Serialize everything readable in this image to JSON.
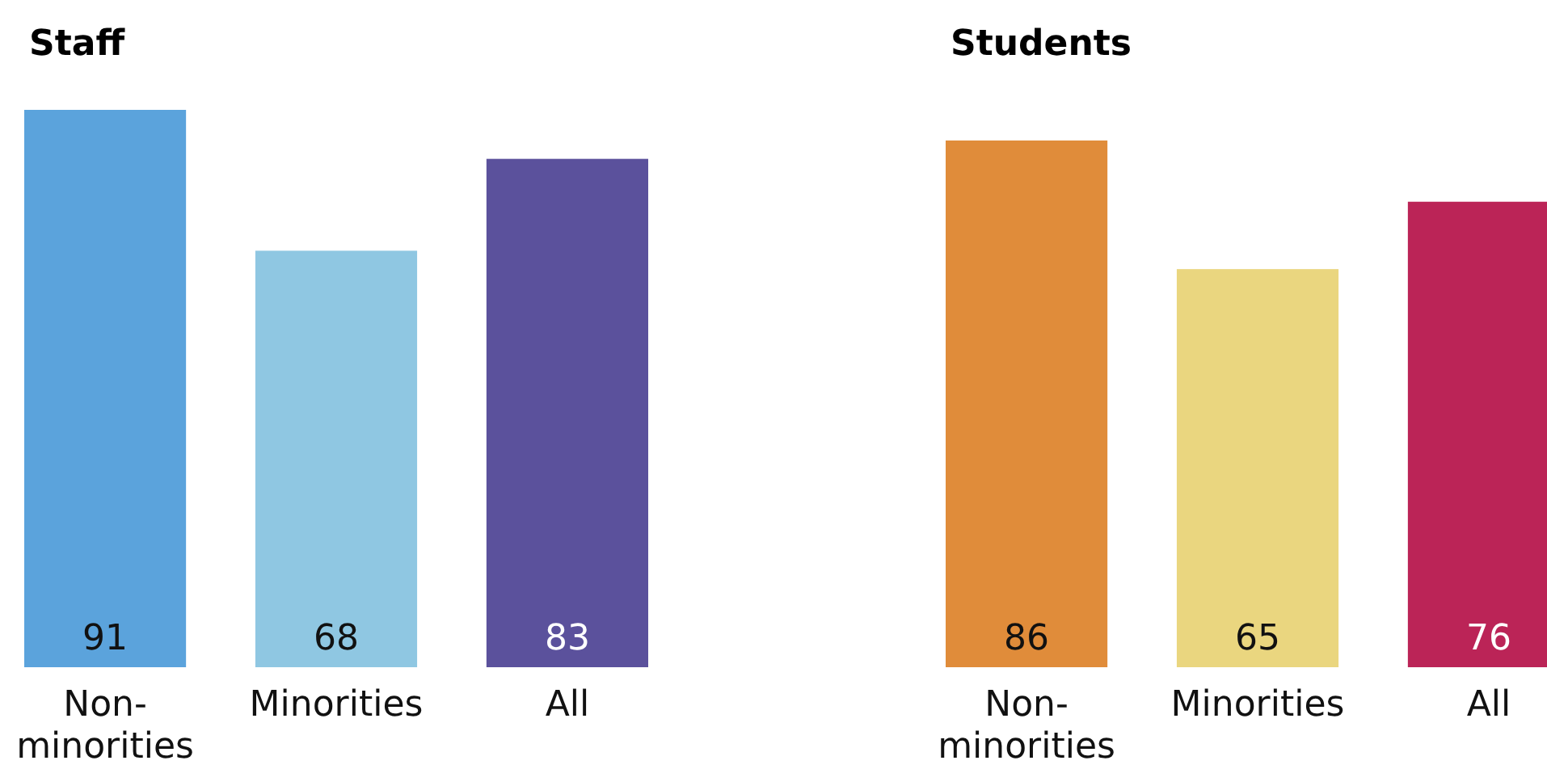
{
  "chart_data": [
    {
      "type": "bar",
      "title": "Staff",
      "categories": [
        "Non-minorities",
        "Minorities",
        "All"
      ],
      "values": [
        91,
        68,
        83
      ],
      "colors": [
        "#5ba3dc",
        "#8fc7e2",
        "#5b519c"
      ],
      "data_labels": true
    },
    {
      "type": "bar",
      "title": "Students",
      "categories": [
        "Non-minorities",
        "Minorities",
        "All"
      ],
      "values": [
        86,
        65,
        76
      ],
      "colors": [
        "#e08c3a",
        "#ead67f",
        "#bb2457"
      ],
      "data_labels": true
    }
  ]
}
